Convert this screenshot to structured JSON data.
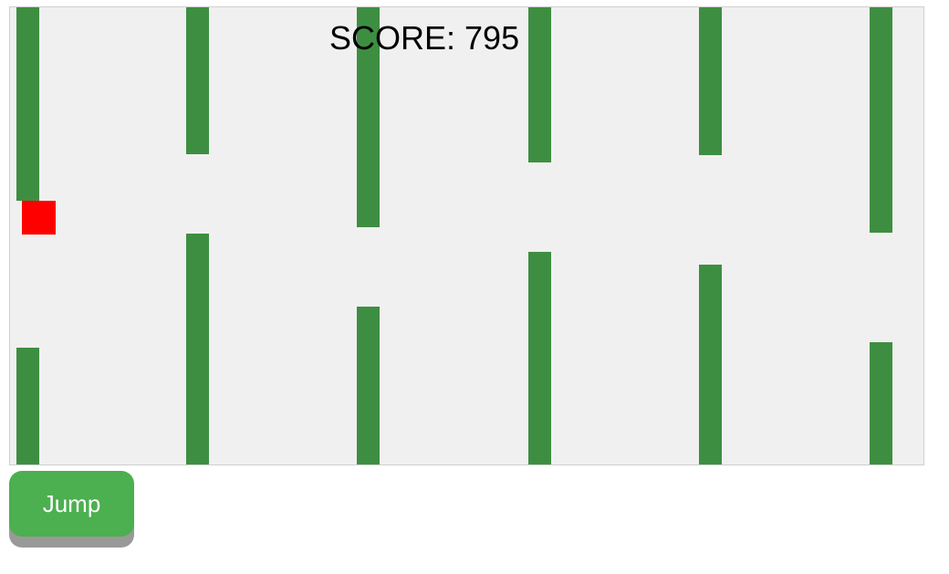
{
  "game": {
    "score_label": "SCORE: 795",
    "player_color": "#ff0000",
    "pipe_color": "#3e8e41",
    "background_color": "#f0f0f0"
  },
  "controls": {
    "jump_label": "Jump",
    "jump_color": "#4caf50"
  }
}
